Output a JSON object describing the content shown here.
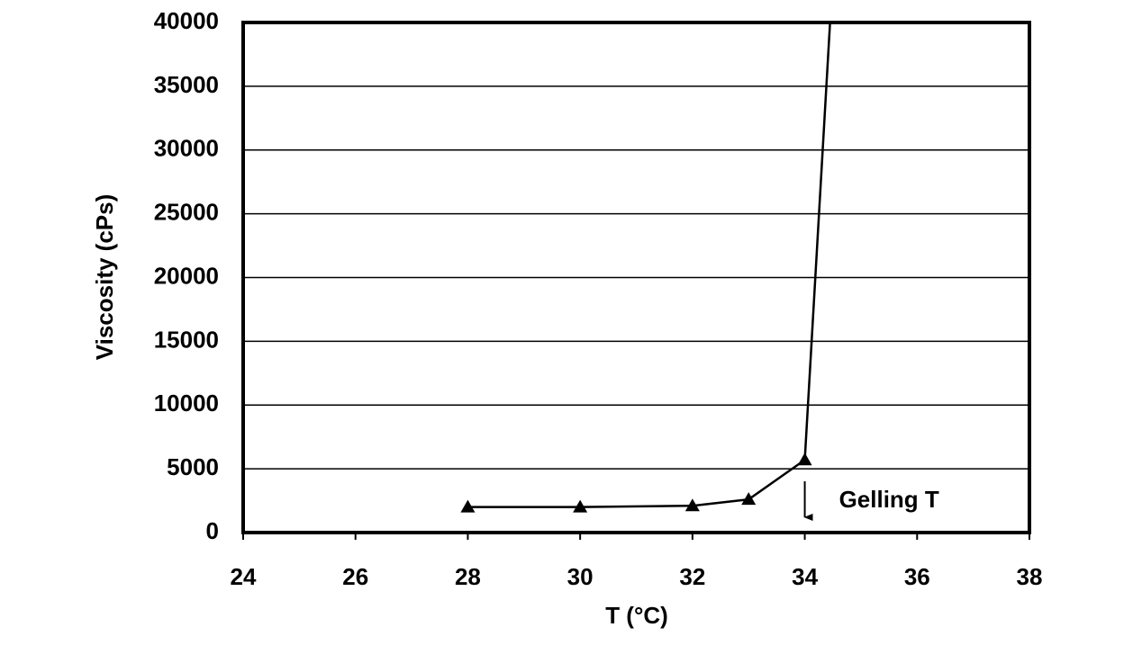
{
  "chart_data": {
    "type": "line",
    "x_label": "T (°C)",
    "y_label": "Viscosity (cPs)",
    "x": [
      28,
      30,
      32,
      33,
      34,
      34.45
    ],
    "series": [
      {
        "name": "Viscosity",
        "color": "#000000",
        "values": [
          2000,
          2000,
          2100,
          2600,
          5700,
          40000
        ],
        "markers": [
          true,
          true,
          true,
          true,
          true,
          false
        ]
      }
    ],
    "xlim": [
      24,
      38
    ],
    "xticks": [
      24,
      26,
      28,
      30,
      32,
      34,
      36,
      38
    ],
    "ylim": [
      0,
      40000
    ],
    "yticks": [
      0,
      5000,
      10000,
      15000,
      20000,
      25000,
      30000,
      35000,
      40000
    ],
    "grid": true,
    "annotations": [
      {
        "text": "Gelling T",
        "x": 34
      }
    ]
  }
}
